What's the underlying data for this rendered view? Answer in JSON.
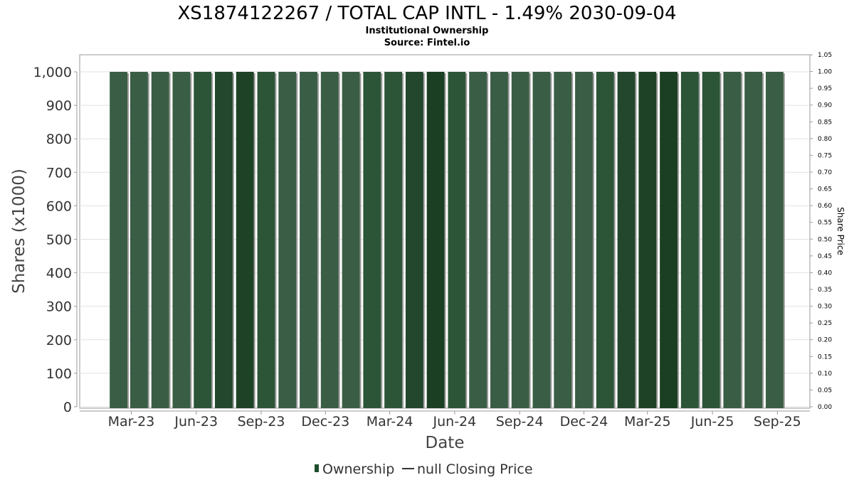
{
  "chart_data": {
    "type": "bar",
    "title": "XS1874122267 / TOTAL CAP INTL - 1.49% 2030-09-04",
    "subtitle_lines": [
      "Institutional Ownership",
      "Source: Fintel.io"
    ],
    "xlabel": "Date",
    "ylabel": "Shares (x1000)",
    "y2label": "Share Price",
    "ylim": [
      0,
      1000
    ],
    "y2lim": [
      0,
      1.05
    ],
    "yticks": [
      "0",
      "100",
      "200",
      "300",
      "400",
      "500",
      "600",
      "700",
      "800",
      "900",
      "1,000"
    ],
    "y2ticks": [
      "0.00",
      "0.05",
      "0.10",
      "0.15",
      "0.20",
      "0.25",
      "0.30",
      "0.35",
      "0.40",
      "0.45",
      "0.50",
      "0.55",
      "0.60",
      "0.65",
      "0.70",
      "0.75",
      "0.80",
      "0.85",
      "0.90",
      "0.95",
      "1.00",
      "1.05"
    ],
    "xticks": [
      "Mar-23",
      "Jun-23",
      "Sep-23",
      "Dec-23",
      "Mar-24",
      "Jun-24",
      "Sep-24",
      "Dec-24",
      "Mar-25",
      "Jun-25",
      "Sep-25"
    ],
    "x_domain": [
      "2023-01-01",
      "2025-10-31"
    ],
    "grid": true,
    "legend_position": "bottom",
    "series": [
      {
        "name": "Ownership",
        "color": "#1e4d2b",
        "x": [
          "2023-02-25",
          "2023-03-26",
          "2023-04-25",
          "2023-05-25",
          "2023-06-24",
          "2023-07-24",
          "2023-08-23",
          "2023-09-22",
          "2023-10-22",
          "2023-11-21",
          "2023-12-21",
          "2024-01-20",
          "2024-02-19",
          "2024-03-20",
          "2024-04-19",
          "2024-05-19",
          "2024-06-18",
          "2024-07-18",
          "2024-08-17",
          "2024-09-16",
          "2024-10-16",
          "2024-11-15",
          "2024-12-15",
          "2025-01-14",
          "2025-02-13",
          "2025-03-15",
          "2025-04-14",
          "2025-05-14",
          "2025-06-13",
          "2025-07-13",
          "2025-08-12",
          "2025-09-11"
        ],
        "values": [
          1000,
          1000,
          1000,
          1000,
          1000,
          1000,
          1000,
          1000,
          1000,
          1000,
          1000,
          1000,
          1000,
          1000,
          1000,
          1000,
          1000,
          1000,
          1000,
          1000,
          1000,
          1000,
          1000,
          1000,
          1000,
          1000,
          1000,
          1000,
          1000,
          1000,
          1000,
          1000
        ],
        "bar_colors": [
          "#3a5e45",
          "#3a5e45",
          "#3a5e45",
          "#3a5e45",
          "#2c5537",
          "#22472d",
          "#1e4226",
          "#2c5537",
          "#3a5e45",
          "#3a5e45",
          "#3a5e45",
          "#3a5e45",
          "#2c5537",
          "#2c5537",
          "#22472d",
          "#1a3f22",
          "#2c5537",
          "#3a5e45",
          "#3a5e45",
          "#3a5e45",
          "#3a5e45",
          "#3a5e45",
          "#3a5e45",
          "#2c5537",
          "#22472d",
          "#1e4226",
          "#1a3f22",
          "#2c5537",
          "#2c5537",
          "#3a5e45",
          "#3a5e45",
          "#3a5e45"
        ]
      },
      {
        "name": "null Closing Price",
        "color": "#333333",
        "values": []
      }
    ]
  }
}
